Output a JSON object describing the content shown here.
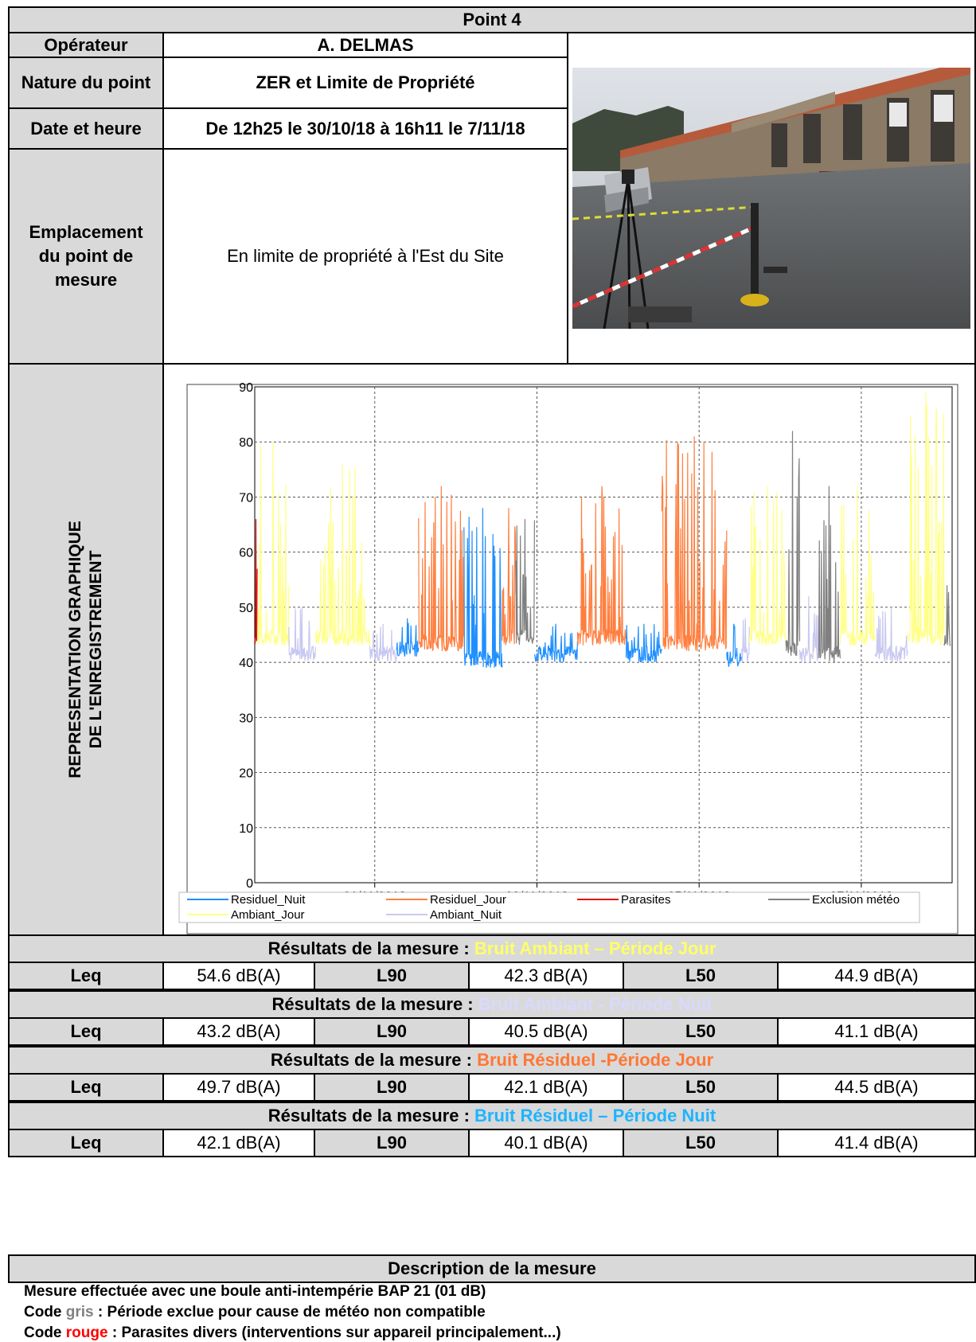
{
  "header": {
    "title": "Point 4"
  },
  "info": {
    "operator_label": "Opérateur",
    "operator_value": "A. DELMAS",
    "nature_label": "Nature du point",
    "nature_value": "ZER et Limite de Propriété",
    "date_label": "Date et heure",
    "date_value": "De 12h25 le 30/10/18 à 16h11 le 7/11/18",
    "location_label": "Emplacement du point de mesure",
    "location_value": "En limite de propriété à l'Est du Site"
  },
  "graph_section": {
    "label_line1": "REPRESENTATION GRAPHIQUE",
    "label_line2": "DE L'ENREGISTREMENT"
  },
  "chart_data": {
    "type": "line",
    "ylim": [
      0,
      90
    ],
    "yticks": [
      "0",
      "10",
      "20",
      "30",
      "40",
      "50",
      "60",
      "70",
      "80",
      "90"
    ],
    "xticks": [
      "01/11/2018",
      "03/11/2018",
      "05/11/2018",
      "07/11/2018"
    ],
    "grid": true,
    "legend_position": "bottom",
    "series": [
      {
        "name": "Residuel_Nuit",
        "color": "#1f8fff"
      },
      {
        "name": "Residuel_Jour",
        "color": "#ff7f3f"
      },
      {
        "name": "Parasites",
        "color": "#e01010"
      },
      {
        "name": "Exclusion météo",
        "color": "#808080"
      },
      {
        "name": "Ambiant_Jour",
        "color": "#ffff88"
      },
      {
        "name": "Ambiant_Nuit",
        "color": "#c8c8f0"
      }
    ],
    "segments": [
      {
        "series": "Parasites",
        "day_start": 0.0,
        "day_end": 0.03,
        "base": 44,
        "peak": 66
      },
      {
        "series": "Ambiant_Jour",
        "day_start": 0.03,
        "day_end": 0.42,
        "base": 44,
        "peak": 80
      },
      {
        "series": "Ambiant_Nuit",
        "day_start": 0.42,
        "day_end": 0.75,
        "base": 41,
        "peak": 50
      },
      {
        "series": "Ambiant_Jour",
        "day_start": 0.75,
        "day_end": 1.42,
        "base": 44,
        "peak": 76
      },
      {
        "series": "Ambiant_Nuit",
        "day_start": 1.42,
        "day_end": 1.75,
        "base": 41,
        "peak": 47
      },
      {
        "series": "Residuel_Nuit",
        "day_start": 1.75,
        "day_end": 2.02,
        "base": 42,
        "peak": 48
      },
      {
        "series": "Residuel_Jour",
        "day_start": 2.02,
        "day_end": 2.58,
        "base": 43,
        "peak": 72
      },
      {
        "series": "Residuel_Nuit",
        "day_start": 2.58,
        "day_end": 3.05,
        "base": 40,
        "peak": 68
      },
      {
        "series": "Residuel_Jour",
        "day_start": 3.05,
        "day_end": 3.22,
        "base": 44,
        "peak": 68
      },
      {
        "series": "Exclusion météo",
        "day_start": 3.22,
        "day_end": 3.45,
        "base": 44,
        "peak": 66
      },
      {
        "series": "Residuel_Nuit",
        "day_start": 3.45,
        "day_end": 3.98,
        "base": 41,
        "peak": 47
      },
      {
        "series": "Residuel_Jour",
        "day_start": 3.98,
        "day_end": 4.58,
        "base": 44,
        "peak": 72
      },
      {
        "series": "Residuel_Nuit",
        "day_start": 4.58,
        "day_end": 5.02,
        "base": 41,
        "peak": 47
      },
      {
        "series": "Residuel_Jour",
        "day_start": 5.02,
        "day_end": 5.82,
        "base": 43,
        "peak": 81
      },
      {
        "series": "Residuel_Nuit",
        "day_start": 5.82,
        "day_end": 6.0,
        "base": 40,
        "peak": 47
      },
      {
        "series": "Ambiant_Nuit",
        "day_start": 6.0,
        "day_end": 6.1,
        "base": 41,
        "peak": 48
      },
      {
        "series": "Ambiant_Jour",
        "day_start": 6.1,
        "day_end": 6.55,
        "base": 44,
        "peak": 72
      },
      {
        "series": "Exclusion météo",
        "day_start": 6.55,
        "day_end": 6.72,
        "base": 42,
        "peak": 82
      },
      {
        "series": "Ambiant_Nuit",
        "day_start": 6.72,
        "day_end": 6.95,
        "base": 41,
        "peak": 52
      },
      {
        "series": "Exclusion météo",
        "day_start": 6.95,
        "day_end": 7.22,
        "base": 41,
        "peak": 72
      },
      {
        "series": "Ambiant_Jour",
        "day_start": 7.22,
        "day_end": 7.65,
        "base": 44,
        "peak": 72
      },
      {
        "series": "Ambiant_Nuit",
        "day_start": 7.65,
        "day_end": 8.05,
        "base": 41,
        "peak": 50
      },
      {
        "series": "Ambiant_Jour",
        "day_start": 8.05,
        "day_end": 8.5,
        "base": 44,
        "peak": 89
      },
      {
        "series": "Exclusion météo",
        "day_start": 8.5,
        "day_end": 8.58,
        "base": 44,
        "peak": 54
      }
    ]
  },
  "results": [
    {
      "prefix": "Résultats de la mesure : ",
      "title": "Bruit Ambiant – Période Jour",
      "color": "#ffff66",
      "leq_label": "Leq",
      "leq": "54.6 dB(A)",
      "l90_label": "L90",
      "l90": "42.3 dB(A)",
      "l50_label": "L50",
      "l50": "44.9 dB(A)"
    },
    {
      "prefix": "Résultats de la mesure : ",
      "title": "Bruit Ambiant - Période Nuit",
      "color": "#d9d9ff",
      "leq_label": "Leq",
      "leq": "43.2 dB(A)",
      "l90_label": "L90",
      "l90": "40.5 dB(A)",
      "l50_label": "L50",
      "l50": "41.1 dB(A)"
    },
    {
      "prefix": "Résultats de la mesure : ",
      "title": "Bruit Résiduel -Période Jour",
      "color": "#ff7733",
      "leq_label": "Leq",
      "leq": "49.7 dB(A)",
      "l90_label": "L90",
      "l90": "42.1 dB(A)",
      "l50_label": "L50",
      "l50": "44.5 dB(A)"
    },
    {
      "prefix": "Résultats de la mesure : ",
      "title": "Bruit Résiduel – Période Nuit",
      "color": "#1eb4ff",
      "leq_label": "Leq",
      "leq": "42.1 dB(A)",
      "l90_label": "L90",
      "l90": "40.1 dB(A)",
      "l50_label": "L50",
      "l50": "41.4 dB(A)"
    }
  ],
  "description": {
    "title": "Description de la mesure",
    "line1": "Mesure effectuée avec une boule anti-intempérie BAP 21 (01 dB)",
    "line2_a": "Code ",
    "line2_b": "gris",
    "line2_c": " : Période exclue pour cause de météo non compatible",
    "line3_a": "Code ",
    "line3_b": "rouge",
    "line3_c": " : Parasites divers (interventions sur appareil principalement...)",
    "gris_color": "#808080",
    "rouge_color": "#ff0000"
  }
}
